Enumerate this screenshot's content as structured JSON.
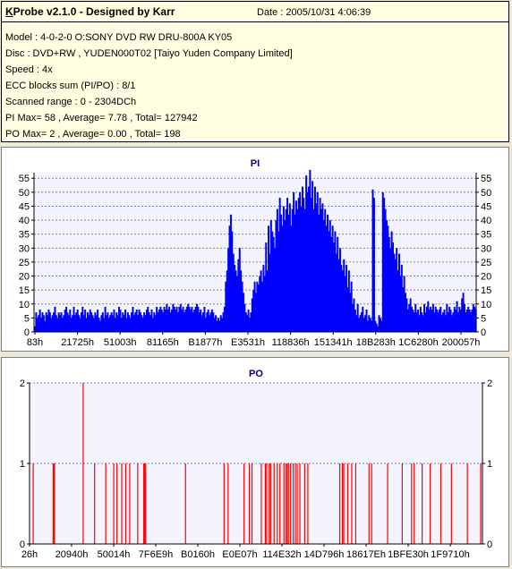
{
  "info": {
    "title_lead": "K",
    "title_rest": "Probe v2.1.0 - Designed by Karr",
    "date": "Date : 2005/10/31 4:06:39",
    "lines": [
      "Model : 4-0-2-0 O:SONY    DVD RW DRU-800A  KY05",
      "Disc : DVD+RW , YUDEN000T02 [Taiyo Yuden Company Limited]",
      "Speed : 4x",
      "ECC blocks sum (PI/PO) : 8/1",
      "Scanned range : 0 - 2304DCh",
      "PI Max= 58 , Average= 7.78 , Total= 127942",
      "PO Max= 2 , Average= 0.00 , Total= 198"
    ]
  },
  "colors": {
    "pi_fill": "#0000ff",
    "po_line": "#ff0000",
    "title": "#000080",
    "grid": "#8080c0",
    "plot_bg": "#f4f4ff"
  },
  "chart_data": [
    {
      "type": "area",
      "title": "PI",
      "ylim": [
        0,
        57
      ],
      "yticks": [
        0,
        5,
        10,
        15,
        20,
        25,
        30,
        35,
        40,
        45,
        50,
        55
      ],
      "xtick_labels": [
        "83h",
        "21725h",
        "51003h",
        "81165h",
        "B1877h",
        "E3531h",
        "118836h",
        "151341h",
        "18B283h",
        "1C6280h",
        "200057h"
      ],
      "grid": "dashed horizontal",
      "series": [
        {
          "values": [
            2,
            7,
            5,
            6,
            8,
            5,
            7,
            6,
            4,
            7,
            6,
            8,
            7,
            5,
            6,
            7,
            9,
            6,
            5,
            7,
            6,
            7,
            5,
            6,
            8,
            9,
            7,
            6,
            8,
            5,
            6,
            9,
            6,
            7,
            8,
            6,
            5,
            7,
            9,
            6,
            8,
            5,
            7,
            6,
            8,
            7,
            6,
            5,
            7,
            6,
            8,
            5,
            4,
            6,
            7,
            5,
            9,
            6,
            7,
            5,
            6,
            7,
            6,
            8,
            5,
            7,
            6,
            9,
            8,
            5,
            7,
            6,
            8,
            5,
            7,
            6,
            5,
            7,
            9,
            6,
            7,
            8,
            6,
            8,
            7,
            6,
            5,
            7,
            6,
            8,
            9,
            7,
            6,
            8,
            5,
            7,
            6,
            9,
            7,
            8,
            9,
            8,
            7,
            9,
            8,
            10,
            8,
            9,
            7,
            8,
            10,
            9,
            8,
            9,
            7,
            9,
            10,
            8,
            9,
            7,
            8,
            9,
            10,
            9,
            8,
            9,
            7,
            8,
            9,
            10,
            9,
            7,
            8,
            6,
            7,
            9,
            5,
            7,
            8,
            6,
            7,
            8,
            7,
            5,
            6,
            4,
            5,
            4,
            6,
            5,
            7,
            9,
            18,
            22,
            30,
            38,
            42,
            36,
            28,
            24,
            22,
            20,
            26,
            30,
            22,
            18,
            14,
            10,
            7,
            6,
            8,
            5,
            7,
            12,
            15,
            18,
            14,
            18,
            17,
            20,
            22,
            18,
            24,
            20,
            32,
            22,
            38,
            28,
            40,
            36,
            34,
            30,
            40,
            44,
            36,
            48,
            42,
            38,
            45,
            40,
            44,
            48,
            42,
            46,
            38,
            44,
            50,
            42,
            47,
            44,
            48,
            50,
            45,
            52,
            48,
            44,
            56,
            50,
            52,
            58,
            48,
            54,
            44,
            52,
            46,
            50,
            42,
            48,
            44,
            46,
            40,
            44,
            38,
            42,
            36,
            40,
            34,
            38,
            32,
            36,
            28,
            34,
            26,
            30,
            24,
            22,
            26,
            20,
            24,
            16,
            22,
            14,
            18,
            10,
            12,
            8,
            6,
            10,
            5,
            6,
            7,
            9,
            5,
            6,
            8,
            4,
            6,
            5,
            4,
            51,
            48,
            4,
            3,
            2,
            6,
            5,
            4,
            50,
            48,
            44,
            40,
            38,
            34,
            30,
            36,
            32,
            28,
            26,
            30,
            22,
            28,
            20,
            24,
            16,
            20,
            14,
            12,
            8,
            10,
            12,
            9,
            8,
            7,
            10,
            7,
            8,
            6,
            9,
            7,
            6,
            10,
            7,
            9,
            11,
            8,
            9,
            8,
            10,
            7,
            9,
            8,
            7,
            8,
            9,
            6,
            7,
            8,
            6,
            10,
            7,
            9,
            8,
            6,
            7,
            9,
            8,
            11,
            7,
            9,
            8,
            12,
            14,
            10,
            7,
            8,
            9,
            8,
            7,
            8,
            10,
            9,
            8
          ]
        }
      ]
    },
    {
      "type": "bar",
      "title": "PO",
      "ylim": [
        0,
        2
      ],
      "yticks": [
        0,
        1,
        2
      ],
      "xtick_labels": [
        "26h",
        "20940h",
        "50014h",
        "7F6E9h",
        "B0160h",
        "E0E07h",
        "114E32h",
        "14D796h",
        "18617Eh",
        "1BFE30h",
        "1F9710h"
      ],
      "grid": "dashed horizontal",
      "series": [
        {
          "x": [
            0.007,
            0.082,
            0.085,
            0.087,
            0.195,
            0.238,
            0.28,
            0.31,
            0.322,
            0.34,
            0.355,
            0.37,
            0.4,
            0.423,
            0.426,
            0.43,
            0.58,
            0.725,
            0.74,
            0.8,
            0.82,
            0.83,
            0.865,
            0.88,
            0.885,
            0.895,
            0.9,
            0.913,
            0.925,
            0.935,
            0.95,
            0.957,
            0.962,
            0.967,
            0.975,
            0.985,
            0.993,
            1.0,
            1.01,
            1.028,
            1.04,
            1.16,
            1.17,
            1.175,
            1.19,
            1.205,
            1.22,
            1.27,
            1.28,
            1.34,
            1.395,
            1.43,
            1.44,
            1.47,
            1.5,
            1.54,
            1.58,
            1.64,
            1.69
          ],
          "values": [
            1,
            1,
            1,
            1,
            2,
            1,
            1,
            1,
            1,
            1,
            1,
            1,
            1,
            1,
            1,
            1,
            1,
            1,
            1,
            1,
            1,
            1,
            1,
            1,
            1,
            1,
            1,
            1,
            1,
            1,
            1,
            1,
            1,
            1,
            1,
            1,
            1,
            1,
            1,
            1,
            1,
            1,
            1,
            1,
            1,
            1,
            1,
            1,
            1,
            1,
            1,
            1,
            1,
            1,
            1,
            1,
            1,
            1,
            1
          ]
        }
      ]
    }
  ]
}
